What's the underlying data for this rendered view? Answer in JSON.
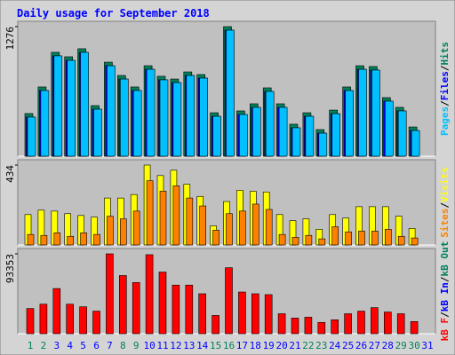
{
  "chart_data": {
    "type": "bar",
    "title": "Daily usage for September 2018",
    "categories": [
      "1",
      "2",
      "3",
      "4",
      "5",
      "6",
      "7",
      "8",
      "9",
      "10",
      "11",
      "12",
      "13",
      "14",
      "15",
      "16",
      "17",
      "18",
      "19",
      "20",
      "21",
      "22",
      "23",
      "24",
      "25",
      "26",
      "27",
      "28",
      "29",
      "30",
      "31"
    ],
    "weekend_color": "#00805c",
    "weekday_color": "#0000ff",
    "weekend_days": [
      0,
      1,
      7,
      8,
      14,
      15,
      21,
      22,
      28,
      29
    ],
    "legend_separator": "/",
    "panels": [
      {
        "ylim": [
          0,
          1276
        ],
        "yticks": [
          1276
        ],
        "series": [
          {
            "name": "Pages",
            "color": "#00c0ff",
            "values": [
              385,
              647,
              988,
              944,
              1023,
              463,
              891,
              760,
              647,
              856,
              752,
              725,
              795,
              769,
              393,
              1241,
              411,
              481,
              638,
              481,
              280,
              393,
              227,
              419,
              647,
              856,
              848,
              542,
              446,
              253,
              null
            ]
          },
          {
            "name": "Files",
            "color": "#0000ff",
            "values": [
              385,
              647,
              988,
              944,
              1023,
              463,
              891,
              760,
              647,
              856,
              752,
              725,
              795,
              769,
              393,
              1241,
              411,
              481,
              638,
              481,
              280,
              393,
              227,
              419,
              647,
              856,
              848,
              542,
              446,
              253,
              null
            ]
          },
          {
            "name": "Hits",
            "color": "#00805c",
            "values": [
              420,
              682,
              1023,
              979,
              1058,
              498,
              926,
              795,
              682,
              891,
              787,
              760,
              830,
              804,
              428,
              1276,
              446,
              516,
              673,
              516,
              315,
              428,
              262,
              454,
              682,
              891,
              883,
              577,
              481,
              288,
              null
            ]
          }
        ]
      },
      {
        "ylim": [
          0,
          434
        ],
        "yticks": [
          434
        ],
        "series": [
          {
            "name": "Sites",
            "color": "#ff8000",
            "values": [
              57,
              52,
              66,
              47,
              66,
              57,
              156,
              142,
              184,
              349,
              292,
              321,
              255,
              212,
              80,
              170,
              184,
              222,
              193,
              57,
              42,
              52,
              33,
              99,
              71,
              75,
              75,
              85,
              47,
              38,
              null
            ]
          },
          {
            "name": "Visits",
            "color": "#ffff00",
            "values": [
              165,
              189,
              184,
              170,
              160,
              151,
              255,
              255,
              274,
              434,
              377,
              406,
              330,
              264,
              104,
              236,
              297,
              292,
              288,
              165,
              132,
              142,
              85,
              165,
              146,
              208,
              208,
              208,
              156,
              90,
              null
            ]
          }
        ]
      },
      {
        "ylim": [
          0,
          93353
        ],
        "yticks": [
          93353
        ],
        "series": [
          {
            "name": "kB F",
            "color": "#ff0000",
            "values": [
              29426,
              34500,
              52764,
              34500,
              31456,
              26382,
              93353,
              67985,
              59868,
              92338,
              72044,
              56823,
              56823,
              46676,
              21309,
              77117,
              48705,
              46676,
              45661,
              23338,
              18265,
              19279,
              13191,
              16235,
              23338,
              26382,
              30441,
              25368,
              23338,
              14206,
              null
            ]
          },
          {
            "name": "kB In",
            "color": "#0000ff",
            "values": [
              null,
              null,
              null,
              null,
              null,
              null,
              null,
              null,
              null,
              null,
              null,
              null,
              null,
              null,
              null,
              null,
              null,
              null,
              null,
              null,
              null,
              null,
              null,
              null,
              null,
              null,
              null,
              null,
              null,
              null,
              null
            ]
          },
          {
            "name": "kB Out",
            "color": "#00805c",
            "values": [
              null,
              null,
              null,
              null,
              null,
              null,
              null,
              null,
              null,
              null,
              null,
              null,
              null,
              null,
              null,
              null,
              null,
              null,
              null,
              null,
              null,
              null,
              null,
              null,
              null,
              null,
              null,
              null,
              null,
              null,
              null
            ]
          }
        ]
      }
    ]
  }
}
